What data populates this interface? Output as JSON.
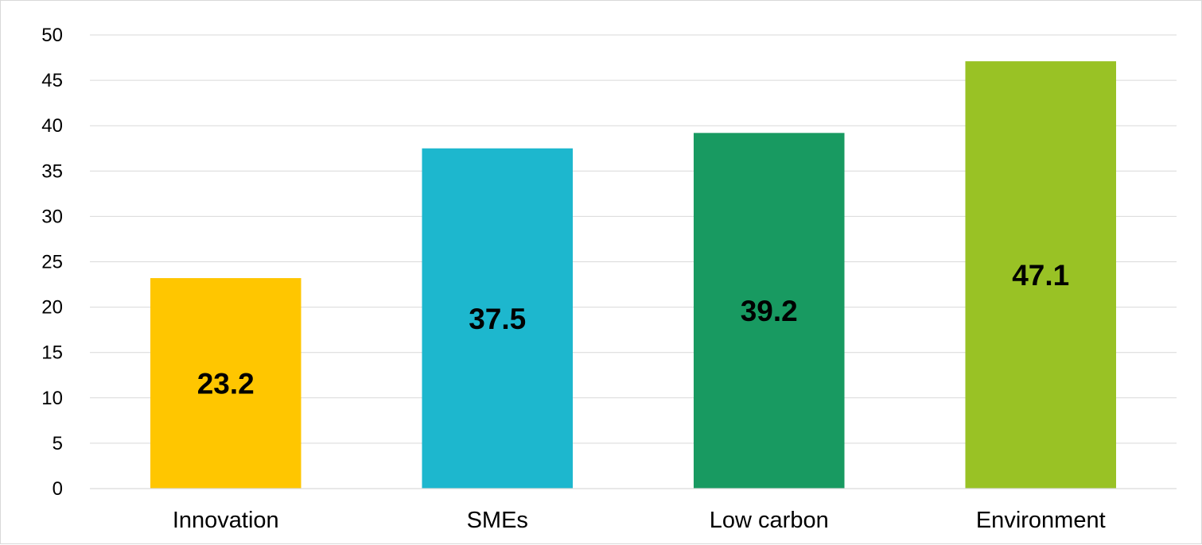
{
  "chart_data": {
    "type": "bar",
    "title": "",
    "xlabel": "",
    "ylabel": "",
    "categories": [
      "Innovation",
      "SMEs",
      "Low carbon",
      "Environment"
    ],
    "values": [
      23.2,
      37.5,
      39.2,
      47.1
    ],
    "data_labels": [
      "23.2",
      "37.5",
      "39.2",
      "47.1"
    ],
    "colors": [
      "#ffc600",
      "#1db7ce",
      "#189a61",
      "#99c225"
    ],
    "ylim": [
      0,
      50
    ],
    "y_ticks": [
      0,
      5,
      10,
      15,
      20,
      25,
      30,
      35,
      40,
      45,
      50
    ],
    "grid": true,
    "legend": "none",
    "data_label_position": "center"
  }
}
